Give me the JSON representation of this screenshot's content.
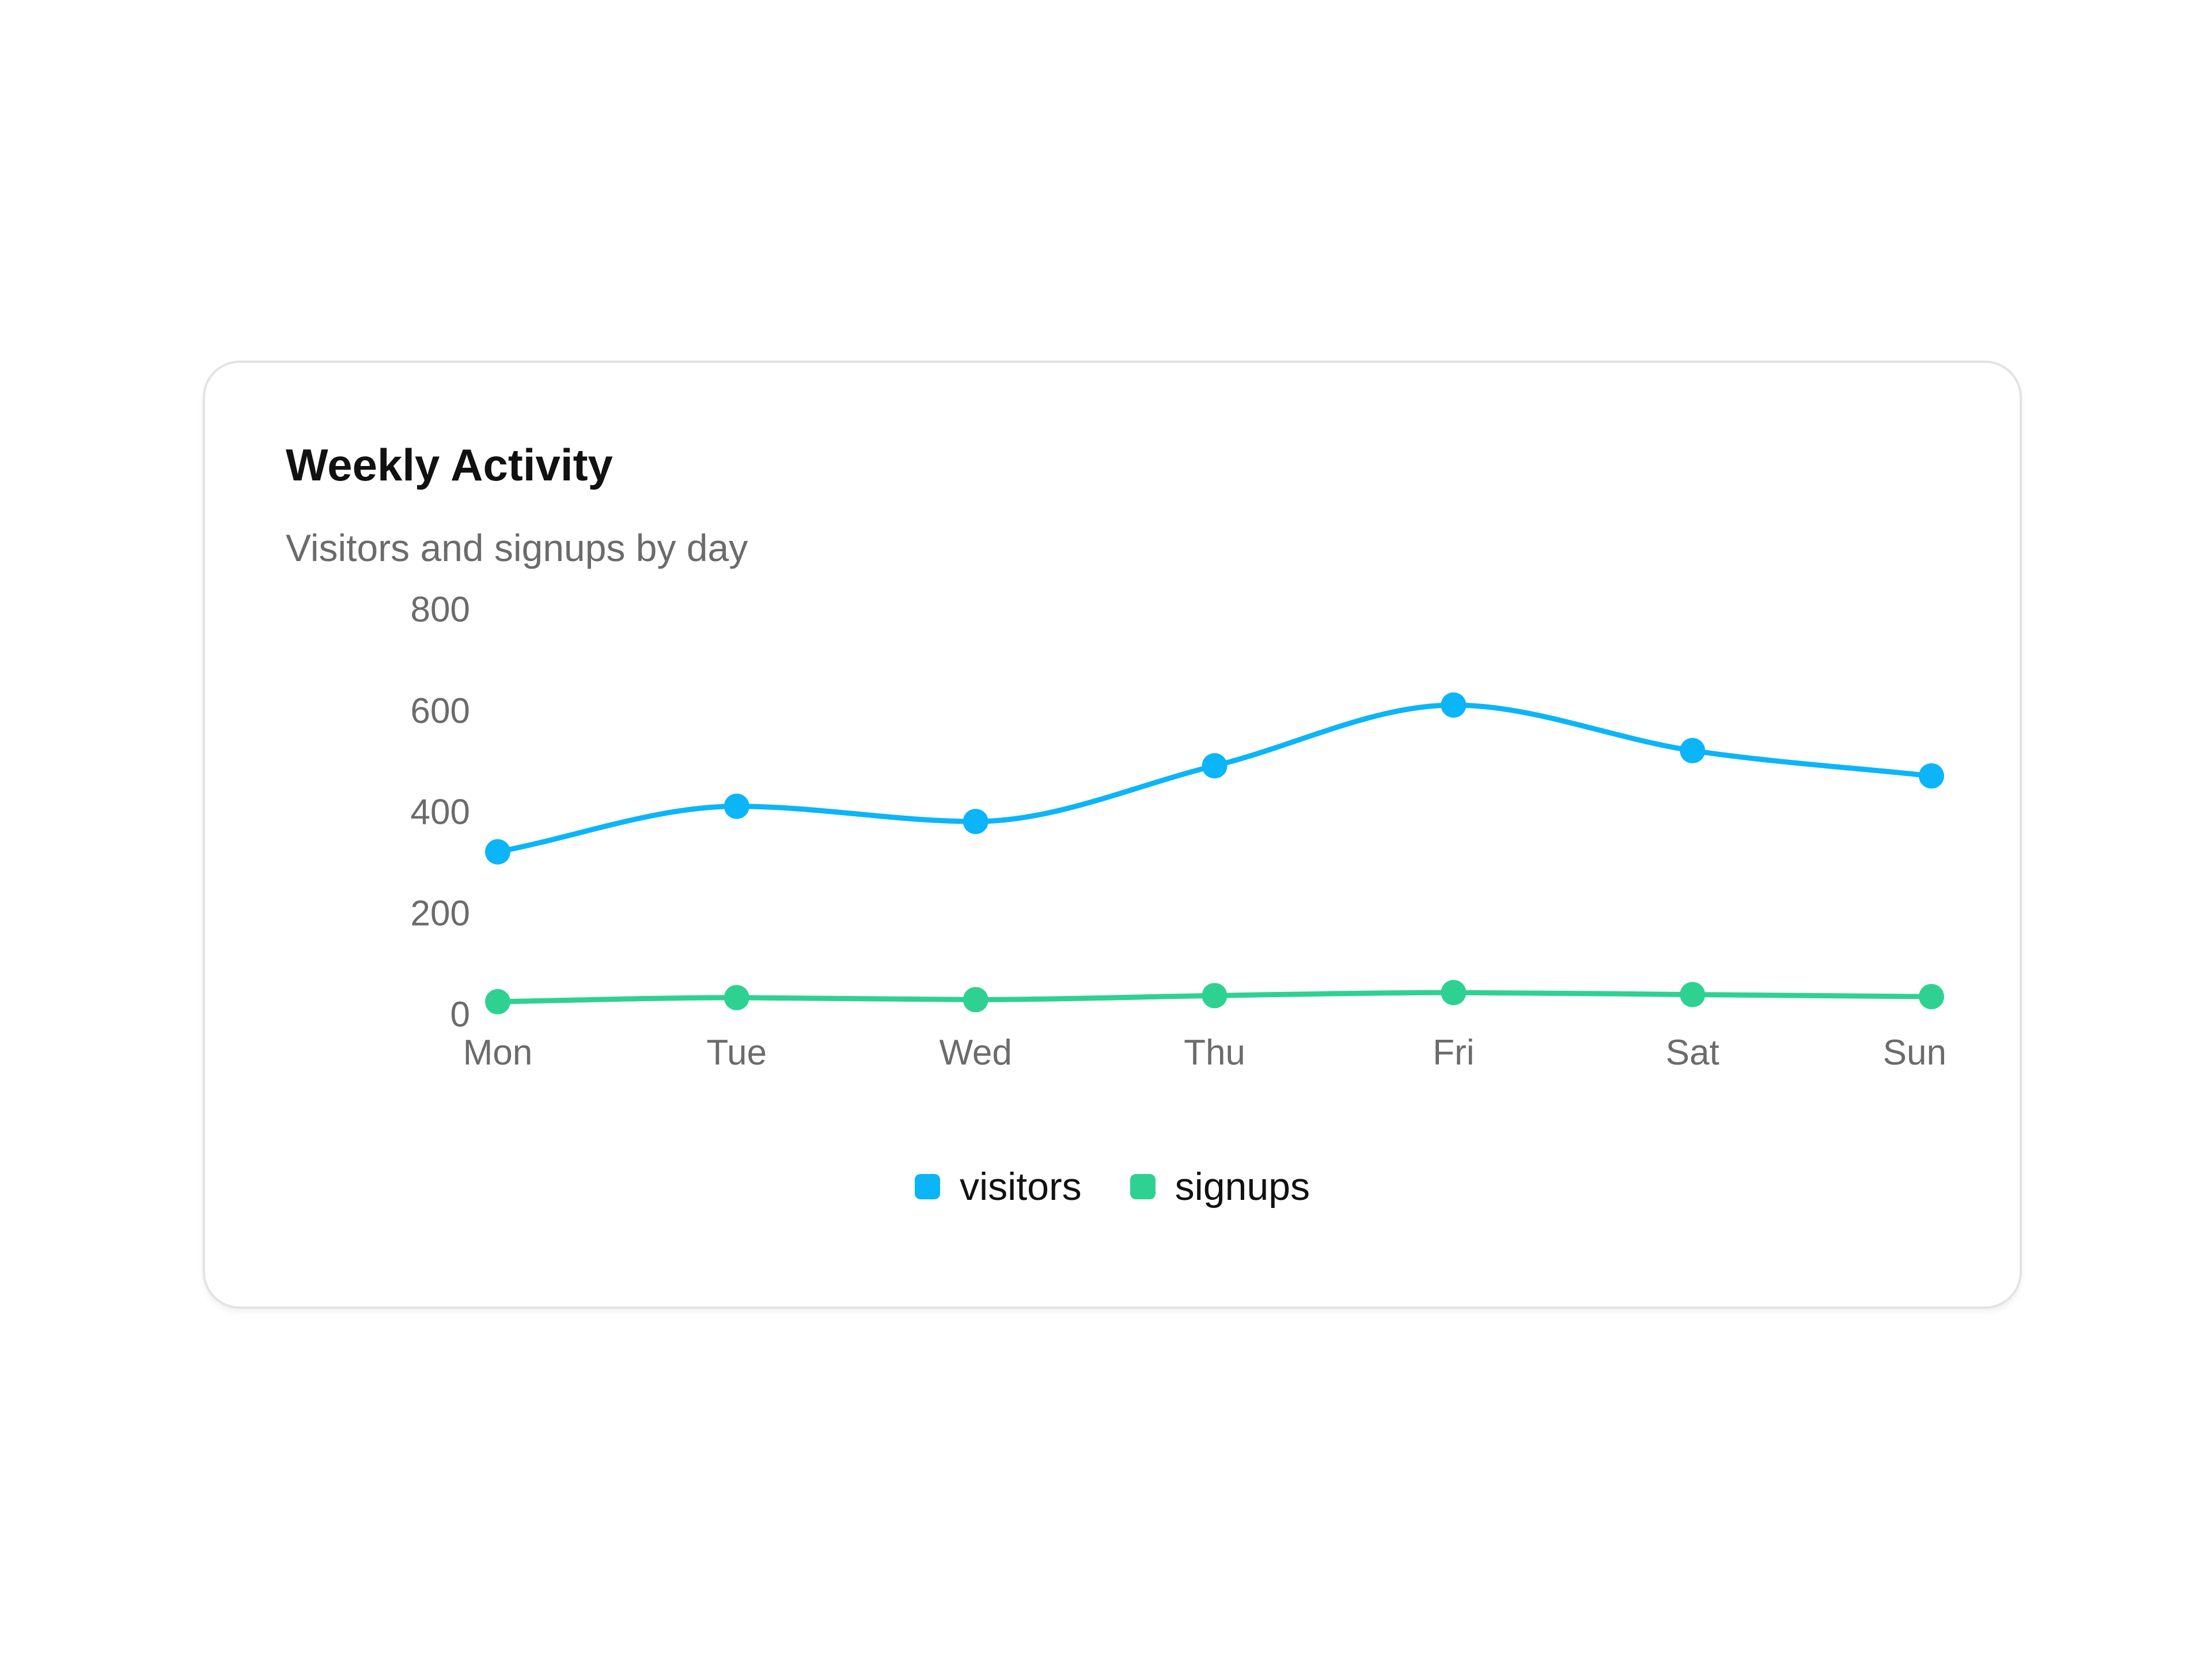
{
  "card": {
    "title": "Weekly Activity",
    "subtitle": "Visitors and signups by day"
  },
  "colors": {
    "visitors": "#0bb5f7",
    "signups": "#2fd193",
    "axis_text": "#6b6b6b"
  },
  "chart_data": {
    "type": "line",
    "title": "Weekly Activity",
    "subtitle": "Visitors and signups by day",
    "categories": [
      "Mon",
      "Tue",
      "Wed",
      "Thu",
      "Fri",
      "Sat",
      "Sun"
    ],
    "series": [
      {
        "name": "visitors",
        "values": [
          320,
          410,
          380,
          490,
          610,
          520,
          470
        ]
      },
      {
        "name": "signups",
        "values": [
          24,
          32,
          28,
          36,
          42,
          38,
          34
        ]
      }
    ],
    "yticks": [
      "0",
      "200",
      "400",
      "600",
      "800"
    ],
    "ylim": [
      0,
      800
    ],
    "xlabel": "",
    "ylabel": "",
    "grid": false,
    "legend": "bottom-center"
  }
}
